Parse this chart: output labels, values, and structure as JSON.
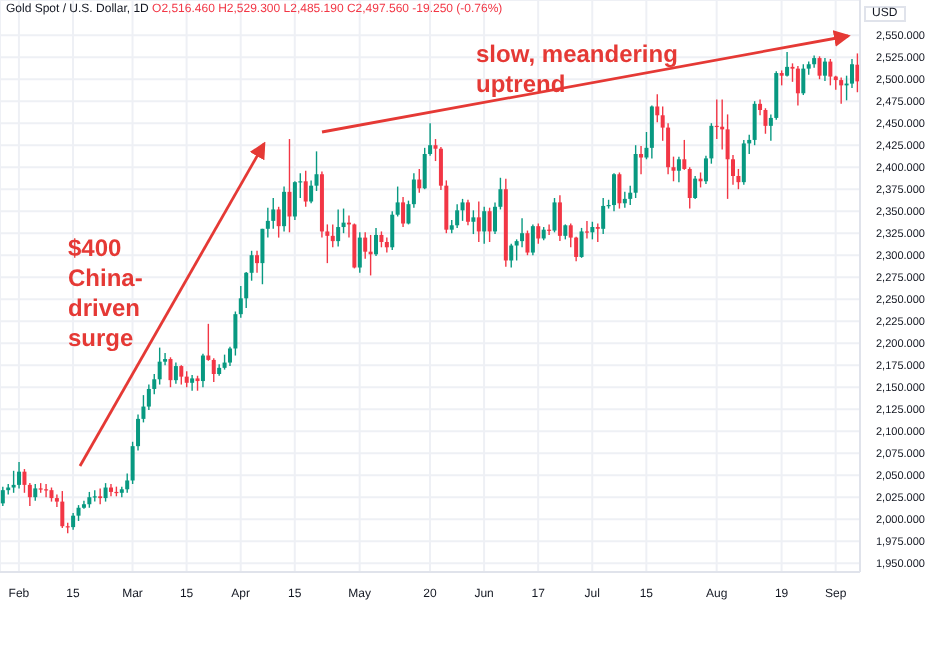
{
  "chart_data": {
    "type": "candlestick",
    "title": "Gold Spot / U.S. Dollar, 1D",
    "subtitle": "O2,516.460 H2,529.300 L2,485.190 C2,497.560 -19.250 (-0.76%)",
    "ylabel": "USD",
    "annotations": [
      "$400 China-driven surge",
      "slow, meandering uptrend"
    ],
    "categories": [
      null,
      null,
      null,
      "Feb",
      null,
      null,
      null,
      null,
      null,
      null,
      null,
      null,
      null,
      "15",
      null,
      null,
      null,
      null,
      null,
      null,
      null,
      null,
      null,
      null,
      "Mar",
      null,
      null,
      null,
      null,
      null,
      null,
      null,
      null,
      null,
      "15",
      null,
      null,
      null,
      null,
      null,
      null,
      null,
      null,
      null,
      "Apr",
      null,
      null,
      null,
      null,
      null,
      null,
      null,
      null,
      null,
      "15",
      null,
      null,
      null,
      null,
      null,
      null,
      null,
      null,
      null,
      null,
      null,
      "May",
      null,
      null,
      null,
      null,
      null,
      null,
      null,
      null,
      null,
      null,
      null,
      null,
      "20",
      null,
      null,
      null,
      null,
      null,
      null,
      null,
      null,
      null,
      "Jun",
      null,
      null,
      null,
      null,
      null,
      null,
      null,
      null,
      null,
      "17",
      null,
      null,
      null,
      null,
      null,
      null,
      null,
      null,
      null,
      "Jul",
      null,
      null,
      null,
      null,
      null,
      null,
      null,
      null,
      null,
      "15",
      null,
      null,
      null,
      null,
      null,
      null,
      null,
      null,
      null,
      null,
      null,
      null,
      "Aug",
      null,
      null,
      null,
      null,
      null,
      null,
      null,
      null,
      null,
      null,
      null,
      "19",
      null,
      null,
      null,
      null,
      null,
      null,
      null,
      null,
      null,
      "Sep",
      null,
      null,
      null,
      null
    ],
    "ohlc": [
      [
        2018,
        2037,
        2015,
        2033
      ],
      [
        2033,
        2040,
        2028,
        2036
      ],
      [
        2036,
        2055,
        2030,
        2039
      ],
      [
        2039,
        2065,
        2035,
        2054
      ],
      [
        2054,
        2057,
        2030,
        2039
      ],
      [
        2039,
        2041,
        2015,
        2025
      ],
      [
        2025,
        2040,
        2021,
        2035
      ],
      [
        2035,
        2041,
        2030,
        2034
      ],
      [
        2034,
        2040,
        2025,
        2033
      ],
      [
        2033,
        2036,
        2020,
        2024
      ],
      [
        2024,
        2028,
        2014,
        2020
      ],
      [
        2020,
        2032,
        1990,
        1992
      ],
      [
        1992,
        1996,
        1984,
        1991
      ],
      [
        1991,
        2007,
        1988,
        2004
      ],
      [
        2004,
        2016,
        1998,
        2013
      ],
      [
        2013,
        2021,
        2012,
        2017
      ],
      [
        2017,
        2031,
        2013,
        2025
      ],
      [
        2025,
        2033,
        2020,
        2026
      ],
      [
        2026,
        2035,
        2017,
        2024
      ],
      [
        2024,
        2041,
        2020,
        2036
      ],
      [
        2036,
        2040,
        2026,
        2031
      ],
      [
        2031,
        2037,
        2026,
        2030
      ],
      [
        2030,
        2037,
        2025,
        2034
      ],
      [
        2034,
        2052,
        2030,
        2044
      ],
      [
        2044,
        2088,
        2040,
        2083
      ],
      [
        2083,
        2119,
        2078,
        2114
      ],
      [
        2114,
        2141,
        2110,
        2128
      ],
      [
        2128,
        2153,
        2124,
        2148
      ],
      [
        2148,
        2165,
        2142,
        2159
      ],
      [
        2159,
        2195,
        2153,
        2179
      ],
      [
        2179,
        2189,
        2175,
        2182
      ],
      [
        2182,
        2184,
        2150,
        2158
      ],
      [
        2158,
        2178,
        2154,
        2174
      ],
      [
        2174,
        2175,
        2153,
        2162
      ],
      [
        2162,
        2168,
        2150,
        2155
      ],
      [
        2155,
        2164,
        2146,
        2160
      ],
      [
        2160,
        2163,
        2146,
        2157
      ],
      [
        2157,
        2188,
        2150,
        2186
      ],
      [
        2186,
        2222,
        2180,
        2181
      ],
      [
        2181,
        2183,
        2156,
        2165
      ],
      [
        2165,
        2176,
        2163,
        2172
      ],
      [
        2172,
        2187,
        2170,
        2178
      ],
      [
        2178,
        2196,
        2174,
        2194
      ],
      [
        2194,
        2236,
        2186,
        2233
      ],
      [
        2233,
        2265,
        2229,
        2251
      ],
      [
        2251,
        2281,
        2240,
        2280
      ],
      [
        2280,
        2305,
        2271,
        2300
      ],
      [
        2300,
        2305,
        2280,
        2291
      ],
      [
        2291,
        2330,
        2267,
        2330
      ],
      [
        2330,
        2354,
        2320,
        2339
      ],
      [
        2339,
        2365,
        2330,
        2352
      ],
      [
        2352,
        2355,
        2320,
        2333
      ],
      [
        2333,
        2378,
        2327,
        2372
      ],
      [
        2372,
        2432,
        2326,
        2344
      ],
      [
        2344,
        2384,
        2340,
        2383
      ],
      [
        2383,
        2393,
        2365,
        2384
      ],
      [
        2384,
        2396,
        2355,
        2361
      ],
      [
        2361,
        2385,
        2359,
        2379
      ],
      [
        2379,
        2418,
        2373,
        2392
      ],
      [
        2392,
        2395,
        2320,
        2327
      ],
      [
        2327,
        2335,
        2291,
        2322
      ],
      [
        2322,
        2335,
        2309,
        2316
      ],
      [
        2316,
        2352,
        2310,
        2332
      ],
      [
        2332,
        2353,
        2325,
        2337
      ],
      [
        2337,
        2345,
        2320,
        2335
      ],
      [
        2335,
        2336,
        2285,
        2286
      ],
      [
        2286,
        2326,
        2280,
        2320
      ],
      [
        2320,
        2326,
        2296,
        2304
      ],
      [
        2304,
        2323,
        2277,
        2301
      ],
      [
        2301,
        2331,
        2299,
        2323
      ],
      [
        2323,
        2327,
        2309,
        2315
      ],
      [
        2315,
        2320,
        2303,
        2309
      ],
      [
        2309,
        2350,
        2306,
        2346
      ],
      [
        2346,
        2378,
        2344,
        2360
      ],
      [
        2360,
        2366,
        2332,
        2336
      ],
      [
        2336,
        2362,
        2335,
        2358
      ],
      [
        2358,
        2393,
        2354,
        2386
      ],
      [
        2386,
        2398,
        2371,
        2376
      ],
      [
        2376,
        2422,
        2375,
        2415
      ],
      [
        2415,
        2450,
        2413,
        2425
      ],
      [
        2425,
        2432,
        2407,
        2421
      ],
      [
        2421,
        2423,
        2374,
        2379
      ],
      [
        2379,
        2385,
        2325,
        2329
      ],
      [
        2329,
        2340,
        2325,
        2334
      ],
      [
        2334,
        2358,
        2331,
        2351
      ],
      [
        2351,
        2364,
        2339,
        2360
      ],
      [
        2360,
        2363,
        2334,
        2338
      ],
      [
        2338,
        2351,
        2324,
        2343
      ],
      [
        2343,
        2361,
        2315,
        2327
      ],
      [
        2327,
        2355,
        2313,
        2350
      ],
      [
        2350,
        2354,
        2315,
        2327
      ],
      [
        2327,
        2360,
        2324,
        2355
      ],
      [
        2355,
        2388,
        2352,
        2375
      ],
      [
        2375,
        2387,
        2287,
        2294
      ],
      [
        2294,
        2313,
        2286,
        2311
      ],
      [
        2311,
        2318,
        2294,
        2316
      ],
      [
        2316,
        2342,
        2309,
        2325
      ],
      [
        2325,
        2328,
        2300,
        2303
      ],
      [
        2303,
        2335,
        2300,
        2333
      ],
      [
        2333,
        2336,
        2313,
        2319
      ],
      [
        2319,
        2332,
        2317,
        2329
      ],
      [
        2329,
        2335,
        2323,
        2328
      ],
      [
        2328,
        2365,
        2326,
        2360
      ],
      [
        2360,
        2368,
        2316,
        2322
      ],
      [
        2322,
        2335,
        2318,
        2334
      ],
      [
        2334,
        2336,
        2309,
        2320
      ],
      [
        2320,
        2321,
        2293,
        2298
      ],
      [
        2298,
        2331,
        2297,
        2327
      ],
      [
        2327,
        2339,
        2319,
        2326
      ],
      [
        2326,
        2338,
        2318,
        2332
      ],
      [
        2332,
        2336,
        2315,
        2330
      ],
      [
        2330,
        2365,
        2324,
        2356
      ],
      [
        2356,
        2363,
        2353,
        2357
      ],
      [
        2357,
        2393,
        2350,
        2392
      ],
      [
        2392,
        2394,
        2353,
        2359
      ],
      [
        2359,
        2372,
        2354,
        2364
      ],
      [
        2364,
        2379,
        2357,
        2371
      ],
      [
        2371,
        2425,
        2365,
        2415
      ],
      [
        2415,
        2424,
        2392,
        2411
      ],
      [
        2411,
        2440,
        2409,
        2422
      ],
      [
        2422,
        2470,
        2410,
        2469
      ],
      [
        2469,
        2483,
        2451,
        2459
      ],
      [
        2459,
        2469,
        2430,
        2445
      ],
      [
        2445,
        2450,
        2392,
        2400
      ],
      [
        2400,
        2412,
        2384,
        2396
      ],
      [
        2396,
        2412,
        2383,
        2409
      ],
      [
        2409,
        2431,
        2397,
        2398
      ],
      [
        2398,
        2400,
        2353,
        2365
      ],
      [
        2365,
        2390,
        2364,
        2387
      ],
      [
        2387,
        2394,
        2377,
        2384
      ],
      [
        2384,
        2413,
        2381,
        2410
      ],
      [
        2410,
        2450,
        2404,
        2447
      ],
      [
        2447,
        2477,
        2432,
        2446
      ],
      [
        2446,
        2477,
        2420,
        2443
      ],
      [
        2443,
        2460,
        2364,
        2409
      ],
      [
        2409,
        2414,
        2380,
        2390
      ],
      [
        2390,
        2398,
        2375,
        2383
      ],
      [
        2383,
        2431,
        2380,
        2427
      ],
      [
        2427,
        2437,
        2415,
        2431
      ],
      [
        2431,
        2475,
        2425,
        2472
      ],
      [
        2472,
        2477,
        2459,
        2465
      ],
      [
        2465,
        2467,
        2438,
        2447
      ],
      [
        2447,
        2460,
        2430,
        2456
      ],
      [
        2456,
        2509,
        2454,
        2507
      ],
      [
        2507,
        2510,
        2493,
        2504
      ],
      [
        2504,
        2531,
        2503,
        2514
      ],
      [
        2514,
        2518,
        2497,
        2512
      ],
      [
        2512,
        2515,
        2470,
        2484
      ],
      [
        2484,
        2517,
        2482,
        2512
      ],
      [
        2512,
        2520,
        2505,
        2517
      ],
      [
        2517,
        2527,
        2513,
        2524
      ],
      [
        2524,
        2526,
        2500,
        2504
      ],
      [
        2504,
        2524,
        2498,
        2520
      ],
      [
        2520,
        2523,
        2493,
        2503
      ],
      [
        2503,
        2504,
        2488,
        2499
      ],
      [
        2499,
        2502,
        2472,
        2493
      ],
      [
        2493,
        2504,
        2476,
        2495
      ],
      [
        2495,
        2523,
        2490,
        2517
      ],
      [
        2516.46,
        2529.3,
        2485.19,
        2497.56
      ]
    ],
    "colors": [
      "#089981",
      "#089981",
      "#089981",
      "#089981",
      "#f23645",
      "#f23645",
      "#089981",
      "#f23645",
      "#f23645",
      "#f23645",
      "#f23645",
      "#f23645",
      "#f23645",
      "#089981",
      "#089981",
      "#089981",
      "#089981",
      "#089981",
      "#f23645",
      "#089981",
      "#f23645",
      "#f23645",
      "#089981",
      "#089981",
      "#089981",
      "#089981",
      "#089981",
      "#089981",
      "#089981",
      "#089981",
      "#089981",
      "#f23645",
      "#089981",
      "#f23645",
      "#f23645",
      "#089981",
      "#f23645",
      "#089981",
      "#f23645",
      "#f23645",
      "#089981",
      "#089981",
      "#089981",
      "#089981",
      "#089981",
      "#089981",
      "#089981",
      "#f23645",
      "#089981",
      "#089981",
      "#089981",
      "#f23645",
      "#089981",
      "#f23645",
      "#089981",
      "#089981",
      "#f23645",
      "#089981",
      "#089981",
      "#f23645",
      "#f23645",
      "#f23645",
      "#089981",
      "#089981",
      "#f23645",
      "#f23645",
      "#089981",
      "#f23645",
      "#f23645",
      "#089981",
      "#f23645",
      "#f23645",
      "#089981",
      "#089981",
      "#f23645",
      "#089981",
      "#089981",
      "#f23645",
      "#089981",
      "#089981",
      "#f23645",
      "#f23645",
      "#f23645",
      "#089981",
      "#089981",
      "#089981",
      "#f23645",
      "#089981",
      "#f23645",
      "#089981",
      "#f23645",
      "#089981",
      "#089981",
      "#f23645",
      "#089981",
      "#089981",
      "#089981",
      "#f23645",
      "#089981",
      "#f23645",
      "#089981",
      "#f23645",
      "#089981",
      "#f23645",
      "#089981",
      "#f23645",
      "#f23645",
      "#089981",
      "#f23645",
      "#089981",
      "#f23645",
      "#089981",
      "#089981",
      "#089981",
      "#f23645",
      "#089981",
      "#089981",
      "#089981",
      "#f23645",
      "#089981",
      "#089981",
      "#f23645",
      "#f23645",
      "#f23645",
      "#f23645",
      "#089981",
      "#f23645",
      "#f23645",
      "#089981",
      "#f23645",
      "#089981",
      "#089981",
      "#f23645",
      "#f23645",
      "#f23645",
      "#f23645",
      "#f23645",
      "#089981",
      "#089981",
      "#089981",
      "#f23645",
      "#f23645",
      "#089981",
      "#089981",
      "#f23645",
      "#089981",
      "#f23645",
      "#f23645",
      "#089981",
      "#089981",
      "#089981",
      "#f23645",
      "#089981",
      "#f23645",
      "#f23645",
      "#f23645",
      "#089981",
      "#089981",
      "#f23645"
    ],
    "ylim": [
      1940,
      2590
    ],
    "yticks": [
      {
        "value": 1950,
        "label": "1,950.000"
      },
      {
        "value": 1975,
        "label": "1,975.000"
      },
      {
        "value": 2000,
        "label": "2,000.000"
      },
      {
        "value": 2025,
        "label": "2,025.000"
      },
      {
        "value": 2050,
        "label": "2,050.000"
      },
      {
        "value": 2075,
        "label": "2,075.000"
      },
      {
        "value": 2100,
        "label": "2,100.000"
      },
      {
        "value": 2125,
        "label": "2,125.000"
      },
      {
        "value": 2150,
        "label": "2,150.000"
      },
      {
        "value": 2175,
        "label": "2,175.000"
      },
      {
        "value": 2200,
        "label": "2,200.000"
      },
      {
        "value": 2225,
        "label": "2,225.000"
      },
      {
        "value": 2250,
        "label": "2,250.000"
      },
      {
        "value": 2275,
        "label": "2,275.000"
      },
      {
        "value": 2300,
        "label": "2,300.000"
      },
      {
        "value": 2325,
        "label": "2,325.000"
      },
      {
        "value": 2350,
        "label": "2,350.000"
      },
      {
        "value": 2375,
        "label": "2,375.000"
      },
      {
        "value": 2400,
        "label": "2,400.000"
      },
      {
        "value": 2425,
        "label": "2,425.000"
      },
      {
        "value": 2450,
        "label": "2,450.000"
      },
      {
        "value": 2475,
        "label": "2,475.000"
      },
      {
        "value": 2500,
        "label": "2,500.000"
      },
      {
        "value": 2525,
        "label": "2,525.000"
      },
      {
        "value": 2550,
        "label": "2,550.000"
      }
    ],
    "grid": true
  }
}
